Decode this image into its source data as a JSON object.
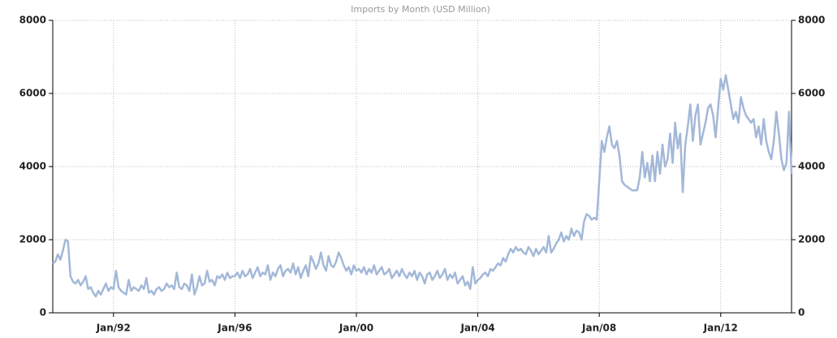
{
  "chart_data": {
    "type": "line",
    "title": "Imports by Month (USD Million)",
    "categories": [
      "Jan/90",
      "Feb/90",
      "Mar/90",
      "Apr/90",
      "May/90",
      "Jun/90",
      "Jul/90",
      "Aug/90",
      "Sep/90",
      "Oct/90",
      "Nov/90",
      "Dec/90",
      "Jan/91",
      "Feb/91",
      "Mar/91",
      "Apr/91",
      "May/91",
      "Jun/91",
      "Jul/91",
      "Aug/91",
      "Sep/91",
      "Oct/91",
      "Nov/91",
      "Dec/91",
      "Jan/92",
      "Feb/92",
      "Mar/92",
      "Apr/92",
      "May/92",
      "Jun/92",
      "Jul/92",
      "Aug/92",
      "Sep/92",
      "Oct/92",
      "Nov/92",
      "Dec/92",
      "Jan/93",
      "Feb/93",
      "Mar/93",
      "Apr/93",
      "May/93",
      "Jun/93",
      "Jul/93",
      "Aug/93",
      "Sep/93",
      "Oct/93",
      "Nov/93",
      "Dec/93",
      "Jan/94",
      "Feb/94",
      "Mar/94",
      "Apr/94",
      "May/94",
      "Jun/94",
      "Jul/94",
      "Aug/94",
      "Sep/94",
      "Oct/94",
      "Nov/94",
      "Dec/94",
      "Jan/95",
      "Feb/95",
      "Mar/95",
      "Apr/95",
      "May/95",
      "Jun/95",
      "Jul/95",
      "Aug/95",
      "Sep/95",
      "Oct/95",
      "Nov/95",
      "Dec/95",
      "Jan/96",
      "Feb/96",
      "Mar/96",
      "Apr/96",
      "May/96",
      "Jun/96",
      "Jul/96",
      "Aug/96",
      "Sep/96",
      "Oct/96",
      "Nov/96",
      "Dec/96",
      "Jan/97",
      "Feb/97",
      "Mar/97",
      "Apr/97",
      "May/97",
      "Jun/97",
      "Jul/97",
      "Aug/97",
      "Sep/97",
      "Oct/97",
      "Nov/97",
      "Dec/97",
      "Jan/98",
      "Feb/98",
      "Mar/98",
      "Apr/98",
      "May/98",
      "Jun/98",
      "Jul/98",
      "Aug/98",
      "Sep/98",
      "Oct/98",
      "Nov/98",
      "Dec/98",
      "Jan/99",
      "Feb/99",
      "Mar/99",
      "Apr/99",
      "May/99",
      "Jun/99",
      "Jul/99",
      "Aug/99",
      "Sep/99",
      "Oct/99",
      "Nov/99",
      "Dec/99",
      "Jan/00",
      "Feb/00",
      "Mar/00",
      "Apr/00",
      "May/00",
      "Jun/00",
      "Jul/00",
      "Aug/00",
      "Sep/00",
      "Oct/00",
      "Nov/00",
      "Dec/00",
      "Jan/01",
      "Feb/01",
      "Mar/01",
      "Apr/01",
      "May/01",
      "Jun/01",
      "Jul/01",
      "Aug/01",
      "Sep/01",
      "Oct/01",
      "Nov/01",
      "Dec/01",
      "Jan/02",
      "Feb/02",
      "Mar/02",
      "Apr/02",
      "May/02",
      "Jun/02",
      "Jul/02",
      "Aug/02",
      "Sep/02",
      "Oct/02",
      "Nov/02",
      "Dec/02",
      "Jan/03",
      "Feb/03",
      "Mar/03",
      "Apr/03",
      "May/03",
      "Jun/03",
      "Jul/03",
      "Aug/03",
      "Sep/03",
      "Oct/03",
      "Nov/03",
      "Dec/03",
      "Jan/04",
      "Feb/04",
      "Mar/04",
      "Apr/04",
      "May/04",
      "Jun/04",
      "Jul/04",
      "Aug/04",
      "Sep/04",
      "Oct/04",
      "Nov/04",
      "Dec/04",
      "Jan/05",
      "Feb/05",
      "Mar/05",
      "Apr/05",
      "May/05",
      "Jun/05",
      "Jul/05",
      "Aug/05",
      "Sep/05",
      "Oct/05",
      "Nov/05",
      "Dec/05",
      "Jan/06",
      "Feb/06",
      "Mar/06",
      "Apr/06",
      "May/06",
      "Jun/06",
      "Jul/06",
      "Aug/06",
      "Sep/06",
      "Oct/06",
      "Nov/06",
      "Dec/06",
      "Jan/07",
      "Feb/07",
      "Mar/07",
      "Apr/07",
      "May/07",
      "Jun/07",
      "Jul/07",
      "Aug/07",
      "Sep/07",
      "Oct/07",
      "Nov/07",
      "Dec/07",
      "Jan/08",
      "Feb/08",
      "Mar/08",
      "Apr/08",
      "May/08",
      "Jun/08",
      "Jul/08",
      "Aug/08",
      "Sep/08",
      "Oct/08",
      "Nov/08",
      "Dec/08",
      "Jan/09",
      "Feb/09",
      "Mar/09",
      "Apr/09",
      "May/09",
      "Jun/09",
      "Jul/09",
      "Aug/09",
      "Sep/09",
      "Oct/09",
      "Nov/09",
      "Dec/09",
      "Jan/10",
      "Feb/10",
      "Mar/10",
      "Apr/10",
      "May/10",
      "Jun/10",
      "Jul/10",
      "Aug/10",
      "Sep/10",
      "Oct/10",
      "Nov/10",
      "Dec/10",
      "Jan/11",
      "Feb/11",
      "Mar/11",
      "Apr/11",
      "May/11",
      "Jun/11",
      "Jul/11",
      "Aug/11",
      "Sep/11",
      "Oct/11",
      "Nov/11",
      "Dec/11",
      "Jan/12",
      "Feb/12",
      "Mar/12",
      "Apr/12",
      "May/12",
      "Jun/12",
      "Jul/12",
      "Aug/12",
      "Sep/12",
      "Oct/12",
      "Nov/12",
      "Dec/12",
      "Jan/13",
      "Feb/13",
      "Mar/13",
      "Apr/13",
      "May/13",
      "Jun/13",
      "Jul/13",
      "Aug/13",
      "Sep/13",
      "Oct/13",
      "Nov/13",
      "Dec/13",
      "Jan/14",
      "Feb/14",
      "Mar/14",
      "Apr/14",
      "May/14"
    ],
    "series": [
      {
        "color": "#a3b8d8",
        "values": [
          1350,
          1400,
          1600,
          1450,
          1700,
          2000,
          1950,
          1000,
          850,
          800,
          900,
          750,
          850,
          1000,
          650,
          700,
          550,
          450,
          600,
          500,
          650,
          800,
          600,
          700,
          650,
          1150,
          700,
          600,
          550,
          500,
          900,
          600,
          700,
          650,
          600,
          750,
          650,
          950,
          550,
          600,
          500,
          650,
          700,
          600,
          650,
          800,
          700,
          750,
          650,
          1100,
          700,
          650,
          800,
          750,
          600,
          1050,
          500,
          700,
          1000,
          750,
          800,
          1150,
          850,
          900,
          750,
          1000,
          950,
          1050,
          900,
          1100,
          950,
          1000,
          1000,
          1100,
          950,
          1150,
          1000,
          1050,
          1200,
          950,
          1100,
          1250,
          1000,
          1100,
          1050,
          1300,
          900,
          1100,
          1000,
          1200,
          1300,
          1000,
          1150,
          1200,
          1100,
          1350,
          1050,
          1250,
          950,
          1150,
          1300,
          1000,
          1550,
          1400,
          1200,
          1350,
          1650,
          1300,
          1150,
          1550,
          1300,
          1250,
          1400,
          1650,
          1500,
          1300,
          1150,
          1250,
          1050,
          1300,
          1150,
          1200,
          1100,
          1250,
          1050,
          1200,
          1100,
          1300,
          1050,
          1150,
          1250,
          1050,
          1100,
          1200,
          950,
          1050,
          1150,
          1000,
          1200,
          1050,
          950,
          1100,
          1000,
          1150,
          900,
          1100,
          1000,
          800,
          1050,
          1100,
          900,
          1000,
          1150,
          950,
          1050,
          1200,
          900,
          1050,
          950,
          1100,
          800,
          900,
          1000,
          750,
          850,
          650,
          1250,
          800,
          900,
          950,
          1050,
          1100,
          1000,
          1200,
          1150,
          1250,
          1350,
          1300,
          1500,
          1400,
          1600,
          1750,
          1650,
          1800,
          1700,
          1750,
          1650,
          1600,
          1800,
          1700,
          1550,
          1750,
          1600,
          1700,
          1800,
          1650,
          2100,
          1650,
          1750,
          1900,
          2000,
          2200,
          1950,
          2100,
          2000,
          2300,
          2100,
          2250,
          2200,
          2000,
          2500,
          2700,
          2650,
          2550,
          2600,
          2550,
          3600,
          4700,
          4400,
          4800,
          5100,
          4600,
          4500,
          4700,
          4300,
          3600,
          3500,
          3450,
          3400,
          3350,
          3350,
          3350,
          3700,
          4400,
          3700,
          4100,
          3600,
          4300,
          3600,
          4400,
          3800,
          4600,
          4000,
          4200,
          4900,
          4100,
          5200,
          4500,
          4900,
          3300,
          4600,
          5100,
          5700,
          4700,
          5400,
          5700,
          4600,
          4900,
          5200,
          5600,
          5700,
          5400,
          4800,
          5600,
          6400,
          6100,
          6500,
          6100,
          5700,
          5300,
          5500,
          5200,
          5900,
          5600,
          5400,
          5300,
          5200,
          5300,
          4800,
          5100,
          4600,
          5300,
          4700,
          4400,
          4200,
          4700,
          5500,
          4900,
          4200,
          3900,
          4100,
          5500,
          3800
        ]
      }
    ],
    "xticks": [
      "Jan/92",
      "Jan/96",
      "Jan/00",
      "Jan/04",
      "Jan/08",
      "Jan/12"
    ],
    "ylim": [
      0,
      8000
    ],
    "yticks": [
      0,
      2000,
      4000,
      6000,
      8000
    ],
    "y2lim": [
      0,
      8000
    ],
    "y2ticks": [
      0,
      2000,
      4000,
      6000,
      8000
    ],
    "grid": true
  }
}
